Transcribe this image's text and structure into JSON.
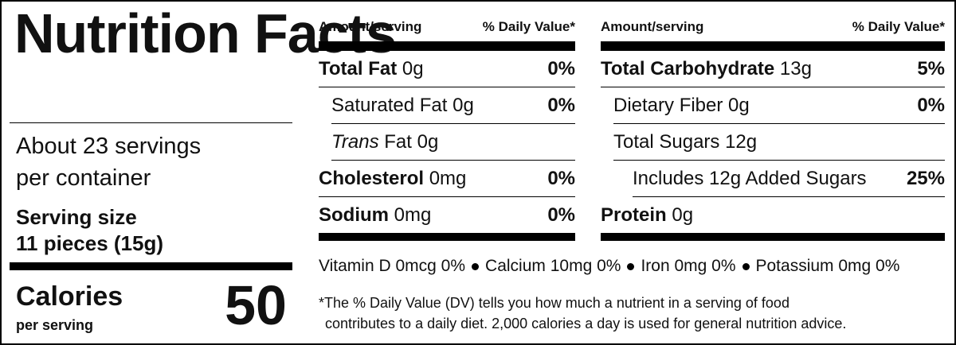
{
  "title": "Nutrition Facts",
  "servings_lines": [
    "About 23 servings",
    "per container"
  ],
  "serving_size": {
    "label": "Serving size",
    "value": "11 pieces (15g)"
  },
  "calories": {
    "label": "Calories",
    "sublabel": "per serving",
    "value": 50
  },
  "panels": [
    {
      "header": {
        "amount": "Amount/serving",
        "dv": "% Daily Value*"
      },
      "rows": [
        {
          "name": "Total Fat",
          "amount": "0g",
          "dv": "0%",
          "sub": [
            {
              "name": "Saturated Fat",
              "amount": "0g",
              "dv": "0%"
            },
            {
              "name_italic": "Trans",
              "name": "Fat",
              "amount": "0g"
            }
          ]
        },
        {
          "name": "Cholesterol",
          "amount": "0mg",
          "dv": "0%"
        },
        {
          "name": "Sodium",
          "amount": "0mg",
          "dv": "0%"
        }
      ]
    },
    {
      "header": {
        "amount": "Amount/serving",
        "dv": "% Daily Value*"
      },
      "rows": [
        {
          "name": "Total Carbohydrate",
          "amount": "13g",
          "dv": "5%",
          "sub": [
            {
              "name": "Dietary Fiber",
              "amount": "0g",
              "dv": "0%"
            },
            {
              "name": "Total Sugars",
              "amount": "12g",
              "sub": [
                {
                  "name": "Includes 12g Added Sugars",
                  "dv": "25%"
                }
              ]
            }
          ]
        },
        {
          "name": "Protein",
          "amount": "0g"
        }
      ]
    }
  ],
  "vitamins": [
    "Vitamin D 0mcg 0%",
    "Calcium 10mg 0%",
    "Iron 0mg 0%",
    "Potassium 0mg 0%"
  ],
  "footnote_lines": [
    "*The % Daily Value (DV) tells you how much a nutrient in a serving of food",
    "contributes to a daily diet. 2,000 calories a day is used for general nutrition advice."
  ]
}
